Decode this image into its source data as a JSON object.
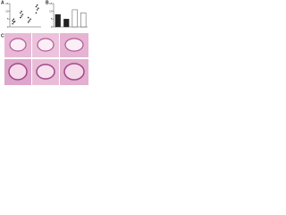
{
  "panels": [
    "A",
    "B",
    "C"
  ],
  "chart_data": [
    {
      "type": "strip",
      "categories": [
        null,
        null,
        null,
        null
      ],
      "groups": [
        [
          2,
          3,
          3.5,
          4,
          5
        ],
        [
          6,
          7,
          8,
          9,
          10
        ],
        [
          3,
          4,
          5,
          6
        ],
        [
          9,
          11,
          12,
          13,
          14
        ]
      ],
      "color": "#222222",
      "ylim": [
        0,
        15
      ],
      "yticks": [
        0,
        5,
        10,
        15
      ]
    },
    {
      "type": "bar",
      "categories": [
        null,
        null,
        null,
        null
      ],
      "values": [
        8,
        5,
        11,
        9
      ],
      "colors": [
        "#222222",
        "#222222",
        "#ffffff",
        "#ffffff"
      ],
      "ylim": [
        0,
        15
      ],
      "yticks": [
        0,
        5,
        10,
        15
      ]
    }
  ]
}
